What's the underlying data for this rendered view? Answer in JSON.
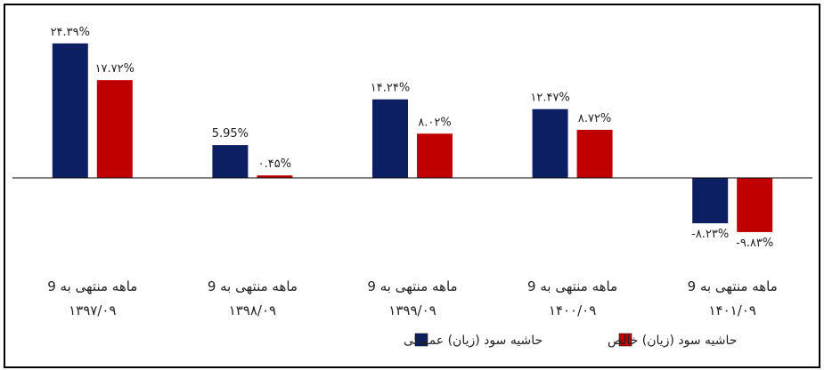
{
  "chart_data": {
    "type": "bar",
    "categories": [
      [
        "9 ماهه منتهی به",
        "۱۳۹۷/۰۹"
      ],
      [
        "9 ماهه منتهی به",
        "۱۳۹۸/۰۹"
      ],
      [
        "9 ماهه منتهی به",
        "۱۳۹۹/۰۹"
      ],
      [
        "9 ماهه منتهی به",
        "۱۴۰۰/۰۹"
      ],
      [
        "9 ماهه منتهی به",
        "۱۴۰۱/۰۹"
      ]
    ],
    "series": [
      {
        "name": "حاشیه سود (زیان) عملیاتی",
        "color": "#0d1f63",
        "values": [
          24.39,
          5.95,
          14.24,
          12.47,
          -8.23
        ],
        "labels": [
          "۲۴.۳۹%",
          "5.95%",
          "۱۴.۲۴%",
          "۱۲.۴۷%",
          "-۸.۲۳%"
        ]
      },
      {
        "name": "حاشیه سود (زیان) خالص",
        "color": "#c00000",
        "values": [
          17.72,
          0.45,
          8.02,
          8.72,
          -9.83
        ],
        "labels": [
          "۱۷.۷۲%",
          "۰.۴۵%",
          "۸.۰۲%",
          "۸.۷۲%",
          "-۹.۸۳%"
        ]
      }
    ],
    "ylim": [
      -14,
      28
    ],
    "grid": false,
    "legend_position": "bottom"
  }
}
